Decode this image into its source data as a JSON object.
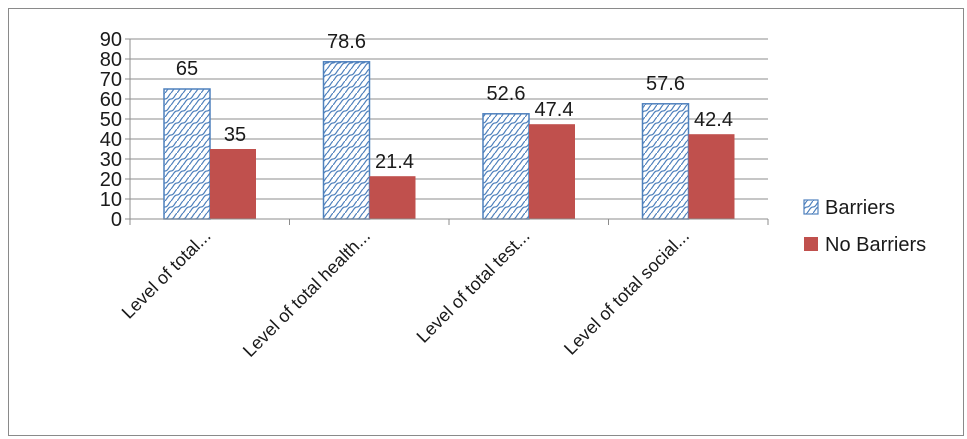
{
  "chart_data": {
    "type": "bar",
    "title": "",
    "xlabel": "",
    "ylabel": "",
    "ylim": [
      0,
      90
    ],
    "yticks": [
      0,
      10,
      20,
      30,
      40,
      50,
      60,
      70,
      80,
      90
    ],
    "grid": true,
    "legend_position": "right",
    "categories": [
      "Level of total...",
      "Level of total health...",
      "Level of total test...",
      "Level of total social..."
    ],
    "series": [
      {
        "name": "Barriers",
        "values": [
          65,
          78.6,
          52.6,
          57.6
        ],
        "labels": [
          "65",
          "78.6",
          "52.6",
          "57.6"
        ],
        "color": "#4f81bd",
        "pattern": "wave-hatch"
      },
      {
        "name": "No Barriers",
        "values": [
          35,
          21.4,
          47.4,
          42.4
        ],
        "labels": [
          "35",
          "21.4",
          "47.4",
          "42.4"
        ],
        "color": "#c0504d",
        "pattern": "solid"
      }
    ]
  }
}
